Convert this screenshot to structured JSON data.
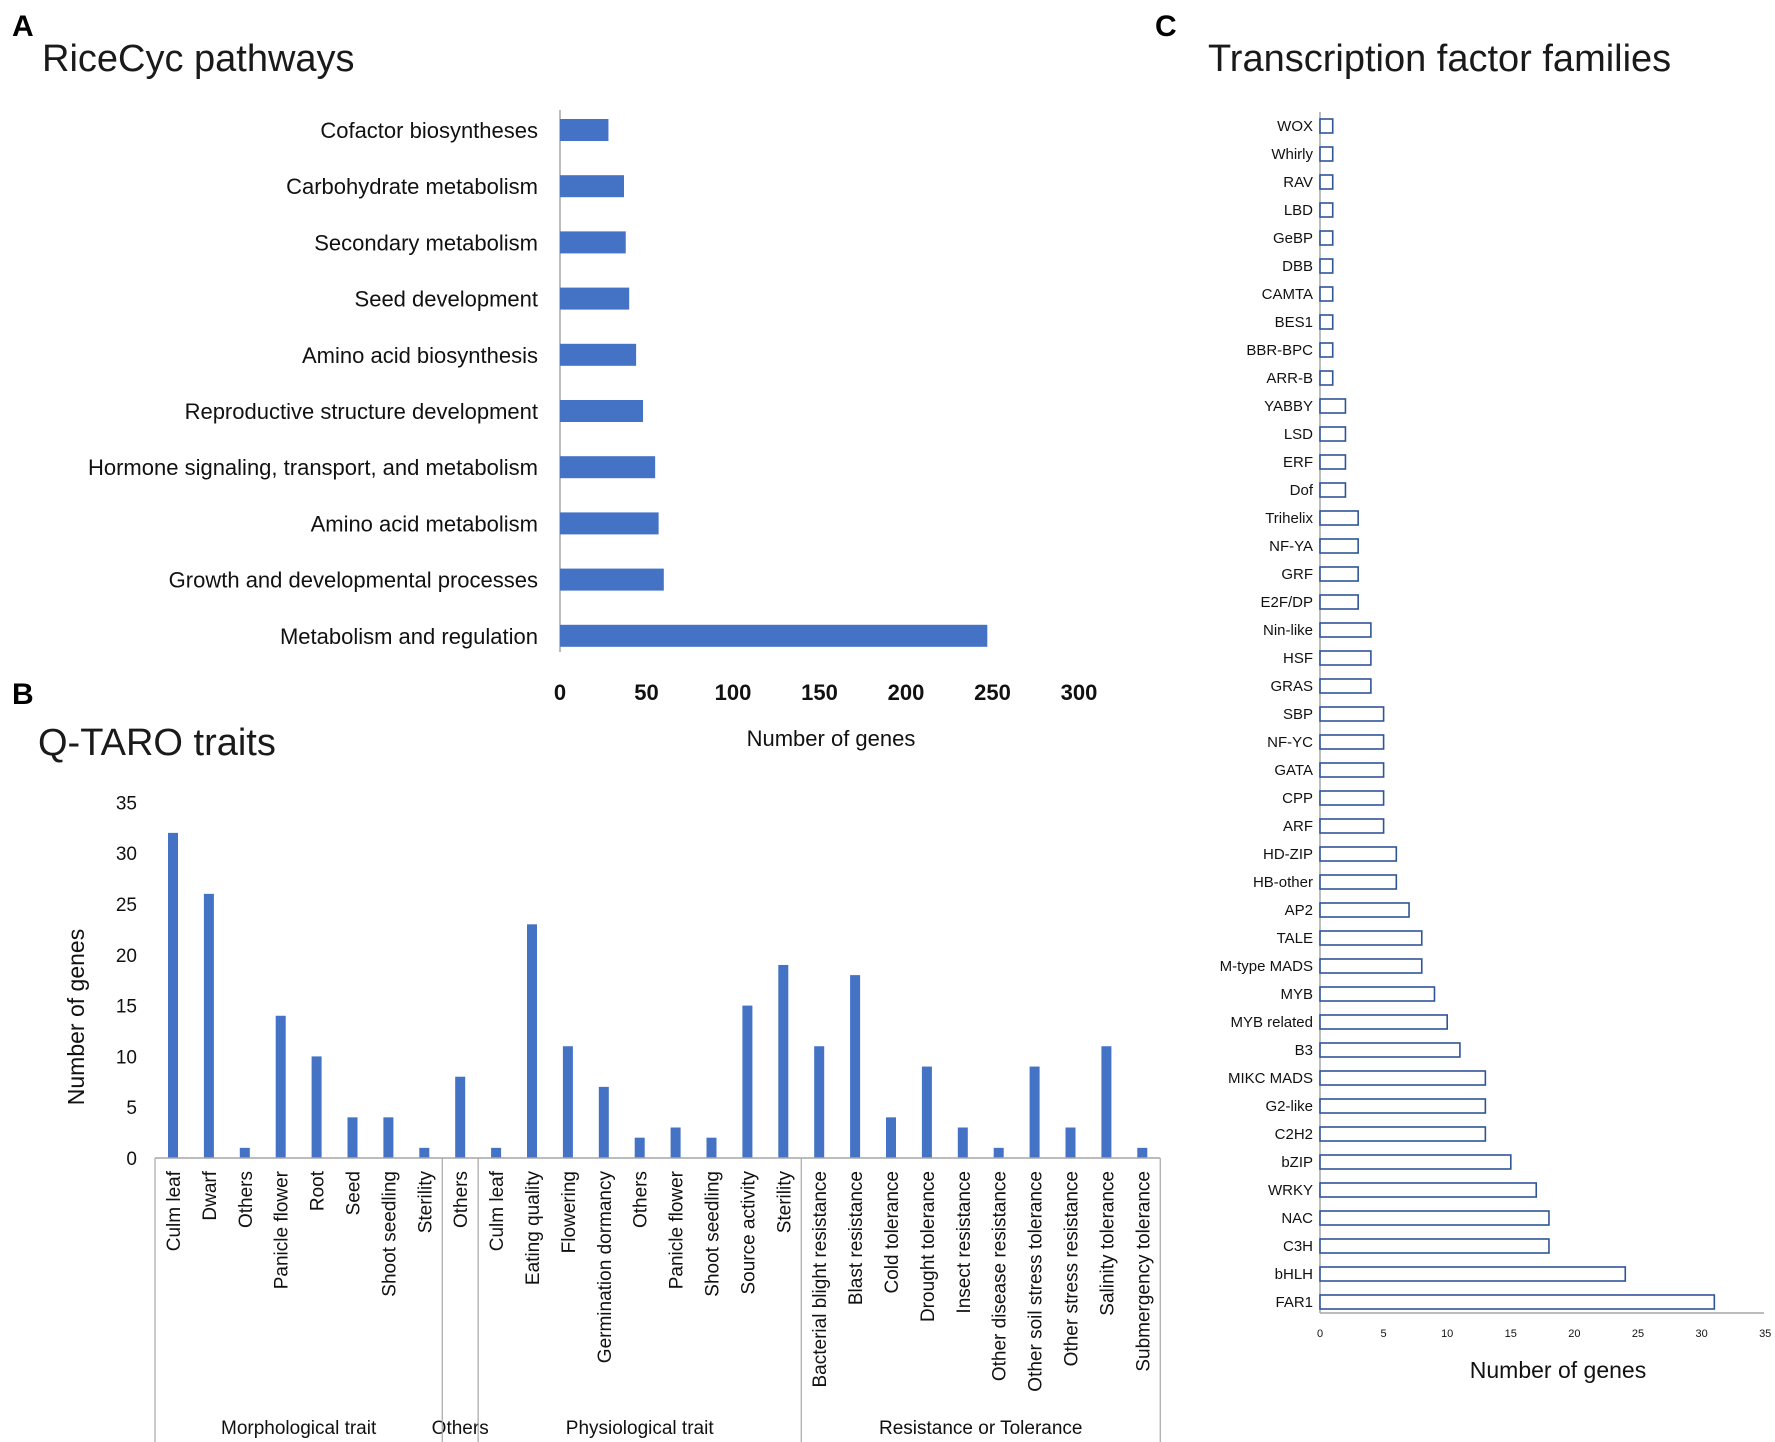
{
  "colors": {
    "bar": "#4472c4",
    "bar_outline": "#2f5597",
    "axis": "#a6a6a6",
    "text": "#111111"
  },
  "panels": {
    "A": {
      "letter": "A",
      "title": "RiceCyc pathways"
    },
    "B": {
      "letter": "B",
      "title": "Q-TARO traits"
    },
    "C": {
      "letter": "C",
      "title": "Transcription factor families"
    }
  },
  "chart_data": [
    {
      "id": "A",
      "type": "bar",
      "orientation": "horizontal",
      "title": "RiceCyc pathways",
      "xlabel": "Number of genes",
      "ylabel": "",
      "xlim": [
        0,
        300
      ],
      "xticks": [
        0,
        50,
        100,
        150,
        200,
        250,
        300
      ],
      "categories": [
        "Cofactor biosyntheses",
        "Carbohydrate metabolism",
        "Secondary metabolism",
        "Seed development",
        "Amino acid biosynthesis",
        "Reproductive structure development",
        "Hormone signaling, transport, and metabolism",
        "Amino acid metabolism",
        "Growth and developmental processes",
        "Metabolism and regulation"
      ],
      "values": [
        28,
        37,
        38,
        40,
        44,
        48,
        55,
        57,
        60,
        247
      ],
      "grid": false,
      "legend": "none"
    },
    {
      "id": "B",
      "type": "bar",
      "orientation": "vertical",
      "title": "Q-TARO traits",
      "xlabel": "",
      "ylabel": "Number of genes",
      "ylim": [
        0,
        35
      ],
      "yticks": [
        0,
        5,
        10,
        15,
        20,
        25,
        30,
        35
      ],
      "categories": [
        "Culm leaf",
        "Dwarf",
        "Others",
        "Panicle flower",
        "Root",
        "Seed",
        "Shoot seedling",
        "Sterility",
        "Others",
        "Culm leaf",
        "Eating quality",
        "Flowering",
        "Germination dormancy",
        "Others",
        "Panicle flower",
        "Shoot seedling",
        "Source activity",
        "Sterility",
        "Bacterial blight resistance",
        "Blast resistance",
        "Cold tolerance",
        "Drought tolerance",
        "Insect resistance",
        "Other disease resistance",
        "Other soil stress tolerance",
        "Other stress resistance",
        "Salinity tolerance",
        "Submergency tolerance"
      ],
      "values": [
        32,
        26,
        1,
        14,
        10,
        4,
        4,
        1,
        8,
        1,
        23,
        11,
        7,
        2,
        3,
        2,
        15,
        19,
        11,
        18,
        4,
        9,
        3,
        1,
        9,
        3,
        11,
        1
      ],
      "groups": [
        {
          "label": "Morphological trait",
          "count": 8
        },
        {
          "label": "Others",
          "count": 1
        },
        {
          "label": "Physiological trait",
          "count": 9
        },
        {
          "label": "Resistance or Tolerance",
          "count": 10
        }
      ],
      "grid": false,
      "legend": "none"
    },
    {
      "id": "C",
      "type": "bar",
      "orientation": "horizontal",
      "title": "Transcription factor families",
      "xlabel": "Number of genes",
      "ylabel": "",
      "xlim": [
        0,
        35
      ],
      "xticks": [
        0,
        5,
        10,
        15,
        20,
        25,
        30,
        35
      ],
      "categories": [
        "WOX",
        "Whirly",
        "RAV",
        "LBD",
        "GeBP",
        "DBB",
        "CAMTA",
        "BES1",
        "BBR-BPC",
        "ARR-B",
        "YABBY",
        "LSD",
        "ERF",
        "Dof",
        "Trihelix",
        "NF-YA",
        "GRF",
        "E2F/DP",
        "Nin-like",
        "HSF",
        "GRAS",
        "SBP",
        "NF-YC",
        "GATA",
        "CPP",
        "ARF",
        "HD-ZIP",
        "HB-other",
        "AP2",
        "TALE",
        "M-type MADS",
        "MYB",
        "MYB related",
        "B3",
        "MIKC MADS",
        "G2-like",
        "C2H2",
        "bZIP",
        "WRKY",
        "NAC",
        "C3H",
        "bHLH",
        "FAR1"
      ],
      "values": [
        1,
        1,
        1,
        1,
        1,
        1,
        1,
        1,
        1,
        1,
        2,
        2,
        2,
        2,
        3,
        3,
        3,
        3,
        4,
        4,
        4,
        5,
        5,
        5,
        5,
        5,
        6,
        6,
        7,
        8,
        8,
        9,
        10,
        11,
        13,
        13,
        13,
        15,
        17,
        18,
        18,
        24,
        31
      ],
      "grid": false,
      "legend": "none"
    }
  ]
}
